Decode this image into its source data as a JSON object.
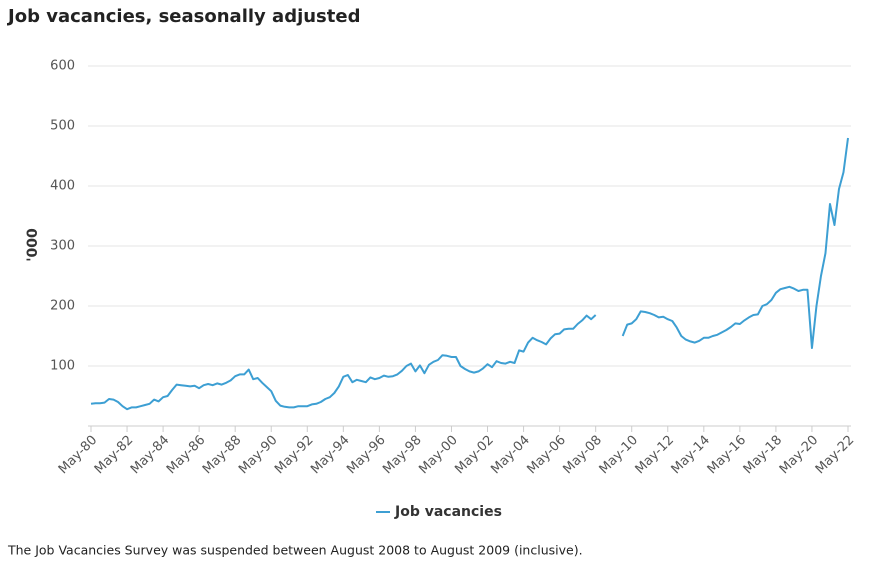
{
  "chart_data": {
    "type": "line",
    "title": "Job vacancies, seasonally adjusted",
    "y_label": "'000",
    "note": "The Job Vacancies Survey was suspended between August 2008 to August 2009 (inclusive).",
    "categories": [
      "May-80",
      null,
      null,
      null,
      null,
      null,
      null,
      null,
      "May-82",
      null,
      null,
      null,
      null,
      null,
      null,
      null,
      "May-84",
      null,
      null,
      null,
      null,
      null,
      null,
      null,
      "May-86",
      null,
      null,
      null,
      null,
      null,
      null,
      null,
      "May-88",
      null,
      null,
      null,
      null,
      null,
      null,
      null,
      "May-90",
      null,
      null,
      null,
      null,
      null,
      null,
      null,
      "May-92",
      null,
      null,
      null,
      null,
      null,
      null,
      null,
      "May-94",
      null,
      null,
      null,
      null,
      null,
      null,
      null,
      "May-96",
      null,
      null,
      null,
      null,
      null,
      null,
      null,
      "May-98",
      null,
      null,
      null,
      null,
      null,
      null,
      null,
      "May-00",
      null,
      null,
      null,
      null,
      null,
      null,
      null,
      "May-02",
      null,
      null,
      null,
      null,
      null,
      null,
      null,
      "May-04",
      null,
      null,
      null,
      null,
      null,
      null,
      null,
      "May-06",
      null,
      null,
      null,
      null,
      null,
      null,
      null,
      "May-08",
      null,
      null,
      null,
      null,
      null,
      null,
      null,
      "May-10",
      null,
      null,
      null,
      null,
      null,
      null,
      null,
      "May-12",
      null,
      null,
      null,
      null,
      null,
      null,
      null,
      "May-14",
      null,
      null,
      null,
      null,
      null,
      null,
      null,
      "May-16",
      null,
      null,
      null,
      null,
      null,
      null,
      null,
      "May-18",
      null,
      null,
      null,
      null,
      null,
      null,
      null,
      "May-20",
      null,
      null,
      null,
      null,
      null,
      null,
      null,
      "May-22"
    ],
    "series": [
      {
        "name": "Job vacancies",
        "color": "#3d9fd3",
        "values": [
          37,
          38,
          38,
          39,
          45,
          44,
          40,
          33,
          28,
          31,
          31,
          33,
          35,
          37,
          44,
          41,
          48,
          50,
          60,
          69,
          68,
          67,
          66,
          67,
          63,
          68,
          70,
          68,
          71,
          69,
          72,
          76,
          83,
          86,
          86,
          94,
          78,
          80,
          72,
          65,
          58,
          42,
          34,
          32,
          31,
          31,
          33,
          33,
          33,
          36,
          37,
          40,
          45,
          48,
          55,
          66,
          82,
          85,
          73,
          77,
          75,
          73,
          81,
          78,
          80,
          84,
          82,
          83,
          86,
          92,
          100,
          104,
          91,
          101,
          88,
          102,
          107,
          110,
          118,
          117,
          115,
          115,
          100,
          95,
          91,
          89,
          91,
          96,
          103,
          98,
          108,
          105,
          104,
          107,
          105,
          126,
          124,
          139,
          147,
          143,
          140,
          136,
          146,
          153,
          154,
          161,
          162,
          162,
          170,
          176,
          184,
          178,
          185,
          null,
          null,
          null,
          null,
          null,
          150,
          169,
          171,
          178,
          191,
          190,
          188,
          185,
          181,
          182,
          178,
          175,
          164,
          150,
          144,
          141,
          139,
          142,
          147,
          147,
          150,
          152,
          156,
          160,
          165,
          171,
          170,
          176,
          181,
          185,
          186,
          200,
          203,
          210,
          222,
          228,
          230,
          232,
          229,
          225,
          227,
          227,
          130,
          200,
          250,
          288,
          370,
          335,
          395,
          423,
          480
        ]
      }
    ],
    "ylim": [
      0,
      600
    ],
    "yticks": [
      100,
      200,
      300,
      400,
      500,
      600
    ],
    "grid": true
  }
}
